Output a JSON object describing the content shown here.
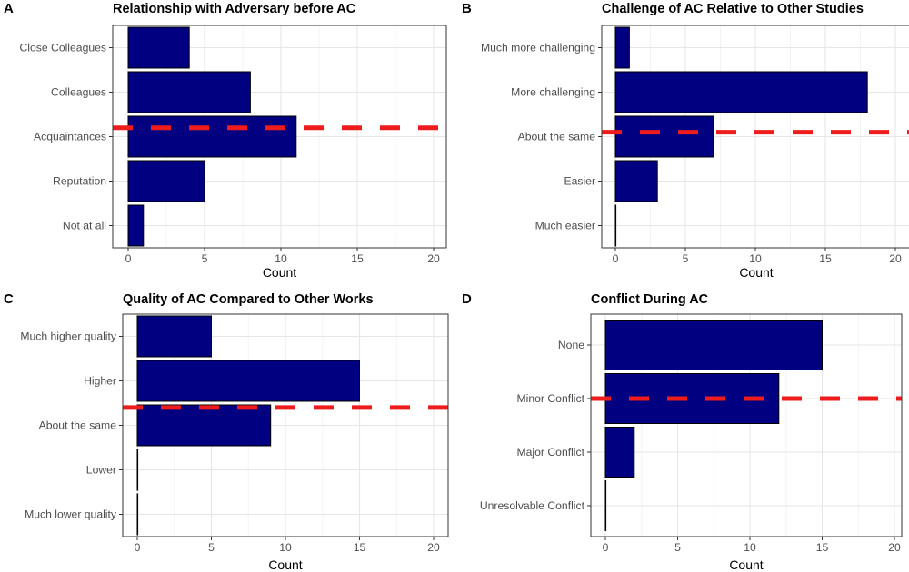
{
  "colors": {
    "bar_fill": "#000080",
    "bar_stroke": "#000000",
    "reference_line": "#ee1c1c",
    "grid_major": "#e6e6e6",
    "grid_minor": "#f3f3f3",
    "panel_border": "#333333"
  },
  "chart_data": [
    {
      "panel": "A",
      "type": "bar",
      "orientation": "horizontal",
      "title": "Relationship with Adversary before AC",
      "xlabel": "Count",
      "xlim": [
        0,
        20
      ],
      "xticks": [
        0,
        5,
        10,
        15,
        20
      ],
      "categories": [
        "Close Colleagues",
        "Colleagues",
        "Acquaintances",
        "Reputation",
        "Not at all"
      ],
      "values": [
        4,
        8,
        11,
        5,
        1
      ],
      "reference_line_category_pos": 2.3
    },
    {
      "panel": "B",
      "type": "bar",
      "orientation": "horizontal",
      "title": "Challenge of AC Relative to Other Studies",
      "xlabel": "Count",
      "xlim": [
        0,
        20
      ],
      "xticks": [
        0,
        5,
        10,
        15,
        20
      ],
      "categories": [
        "Much more challenging",
        "More challenging",
        "About the same",
        "Easier",
        "Much easier"
      ],
      "values": [
        1,
        18,
        7,
        3,
        0
      ],
      "reference_line_category_pos": 2.4
    },
    {
      "panel": "C",
      "type": "bar",
      "orientation": "horizontal",
      "title": "Quality of AC Compared to Other Works",
      "xlabel": "Count",
      "xlim": [
        0,
        20
      ],
      "xticks": [
        0,
        5,
        10,
        15,
        20
      ],
      "categories": [
        "Much higher quality",
        "Higher",
        "About the same",
        "Lower",
        "Much lower quality"
      ],
      "values": [
        5,
        15,
        9,
        0,
        0
      ],
      "reference_line_category_pos": 2.1
    },
    {
      "panel": "D",
      "type": "bar",
      "orientation": "horizontal",
      "title": "Conflict During AC",
      "xlabel": "Count",
      "xlim": [
        0,
        20
      ],
      "xticks": [
        0,
        5,
        10,
        15,
        20
      ],
      "categories": [
        "None",
        "Minor Conflict",
        "Major Conflict",
        "Unresolvable Conflict"
      ],
      "values": [
        15,
        12,
        2,
        0
      ],
      "reference_line_category_pos": 1.5
    }
  ]
}
